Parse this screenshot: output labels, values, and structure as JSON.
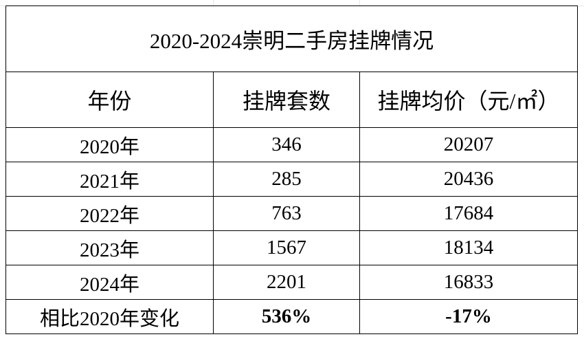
{
  "table": {
    "title": "2020-2024崇明二手房挂牌情况",
    "header": [
      "年份",
      "挂牌套数",
      "挂牌均价（元/㎡）"
    ],
    "rows": [
      [
        "2020年",
        "346",
        "20207"
      ],
      [
        "2021年",
        "285",
        "20436"
      ],
      [
        "2022年",
        "763",
        "17684"
      ],
      [
        "2023年",
        "1567",
        "18134"
      ],
      [
        "2024年",
        "2201",
        "16833"
      ]
    ],
    "summary": [
      "相比2020年变化",
      "536%",
      "-17%"
    ]
  }
}
